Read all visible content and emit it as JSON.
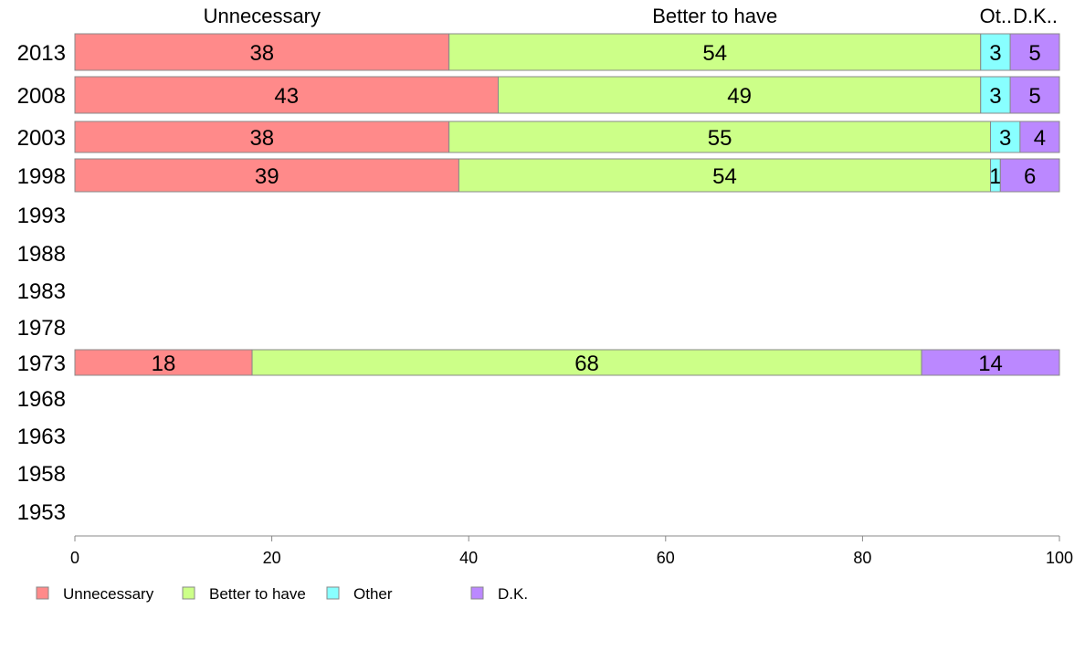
{
  "chart_data": {
    "type": "bar",
    "orientation": "horizontal",
    "stacked": true,
    "categories": [
      "2013",
      "2008",
      "2003",
      "1998",
      "1993",
      "1988",
      "1983",
      "1978",
      "1973",
      "1968",
      "1963",
      "1958",
      "1953"
    ],
    "series": [
      {
        "name": "Unnecessary",
        "color": "#ff8a8a",
        "values": [
          38,
          43,
          38,
          39,
          null,
          null,
          null,
          null,
          18,
          null,
          null,
          null,
          null
        ]
      },
      {
        "name": "Better to have",
        "color": "#ccff88",
        "values": [
          54,
          49,
          55,
          54,
          null,
          null,
          null,
          null,
          68,
          null,
          null,
          null,
          null
        ]
      },
      {
        "name": "Other",
        "color": "#88ffff",
        "values": [
          3,
          3,
          3,
          1,
          null,
          null,
          null,
          null,
          0,
          null,
          null,
          null,
          null
        ]
      },
      {
        "name": "D.K.",
        "color": "#bb88ff",
        "values": [
          5,
          5,
          4,
          6,
          null,
          null,
          null,
          null,
          14,
          null,
          null,
          null,
          null
        ]
      }
    ],
    "top_labels": [
      "Unnecessary",
      "Better to have",
      "Ot..",
      "D.K.."
    ],
    "xlim": [
      0,
      100
    ],
    "xticks": [
      0,
      20,
      40,
      60,
      80,
      100
    ],
    "grid": false,
    "legend_position": "bottom-left"
  }
}
